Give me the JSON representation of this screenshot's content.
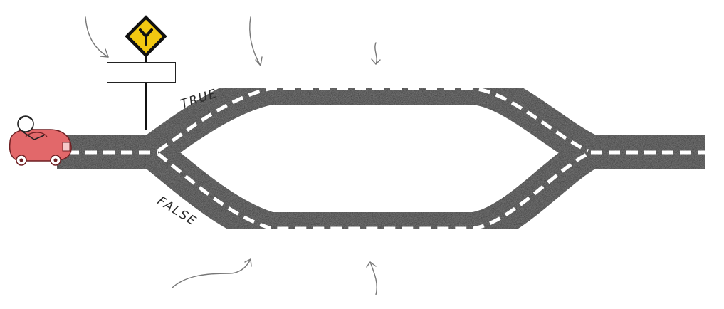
{
  "labels": {
    "true_branch": "TRUE",
    "false_branch": "FALSE"
  },
  "sign": {
    "symbol": "Y",
    "text": ""
  },
  "colors": {
    "asphalt": "#2f2f2f",
    "lane_marking": "#ffffff",
    "sign_yellow": "#f2c811",
    "car_red": "#e2686a"
  },
  "icons": [
    "y-junction-sign-icon",
    "car-icon",
    "driver-icon",
    "arrow-icon"
  ]
}
